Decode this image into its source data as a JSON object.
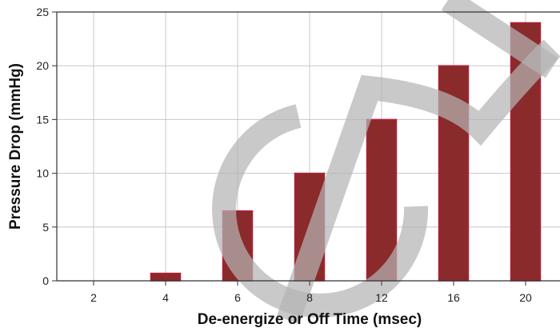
{
  "chart_data": {
    "type": "bar",
    "title": "",
    "xlabel": "De-energize or Off Time (msec)",
    "ylabel": "Pressure Drop (mmHg)",
    "categories": [
      "2",
      "4",
      "6",
      "8",
      "12",
      "16",
      "20"
    ],
    "values": [
      0,
      0.7,
      6.5,
      10,
      15,
      20,
      24
    ],
    "ylim": [
      0,
      25
    ],
    "yticks": [
      0,
      5,
      10,
      15,
      20,
      25
    ],
    "grid": true,
    "legend": "none",
    "colors": {
      "bar_fill": "#8b2a2a",
      "bar_edge": "#b0203a",
      "grid": "#c8c8c8",
      "axis": "#333333",
      "watermark": "#b4b4b4"
    }
  }
}
